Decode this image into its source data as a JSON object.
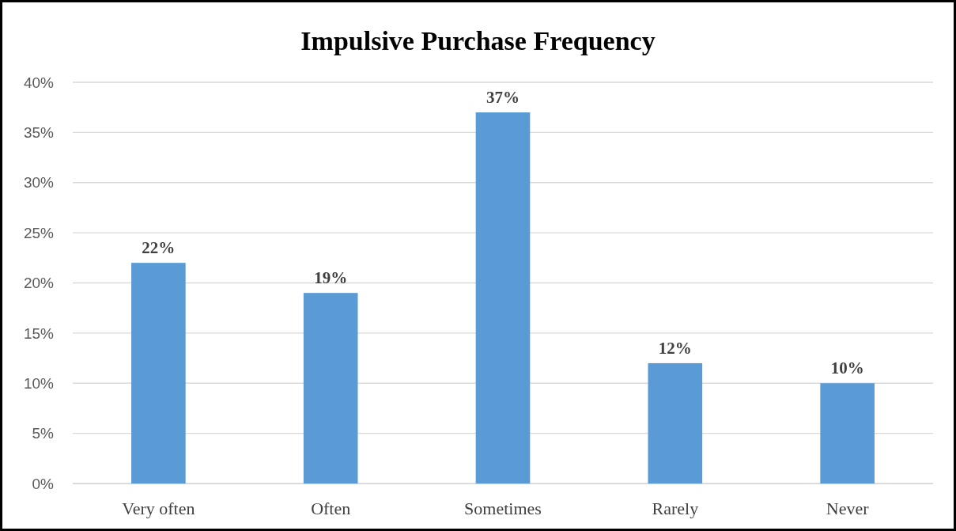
{
  "chart_data": {
    "type": "bar",
    "title": "Impulsive Purchase Frequency",
    "categories": [
      "Very often",
      "Often",
      "Sometimes",
      "Rarely",
      "Never"
    ],
    "values": [
      22,
      19,
      37,
      12,
      10
    ],
    "value_labels": [
      "22%",
      "19%",
      "37%",
      "12%",
      "10%"
    ],
    "color": "#5b9bd5",
    "ylim": [
      0,
      40
    ],
    "yticks": [
      {
        "value": 0,
        "label": "0%"
      },
      {
        "value": 5,
        "label": "5%"
      },
      {
        "value": 10,
        "label": "10%"
      },
      {
        "value": 15,
        "label": "15%"
      },
      {
        "value": 20,
        "label": "20%"
      },
      {
        "value": 25,
        "label": "25%"
      },
      {
        "value": 30,
        "label": "30%"
      },
      {
        "value": 35,
        "label": "35%"
      },
      {
        "value": 40,
        "label": "40%"
      }
    ],
    "grid": "y"
  }
}
